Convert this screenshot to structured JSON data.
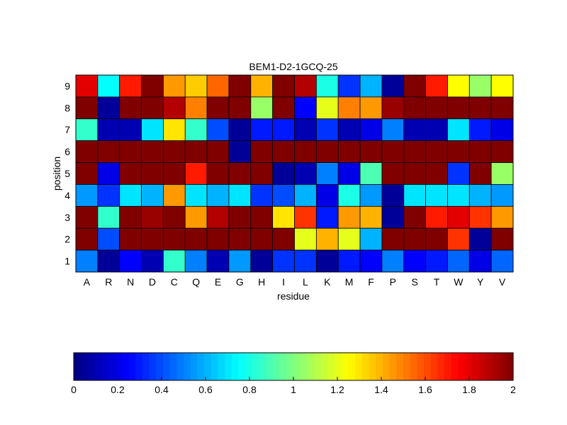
{
  "chart_data": {
    "type": "heatmap",
    "title": "BEM1-D2-1GCQ-25",
    "xlabel": "residue",
    "ylabel": "position",
    "x_categories": [
      "A",
      "R",
      "N",
      "D",
      "C",
      "Q",
      "E",
      "G",
      "H",
      "I",
      "L",
      "K",
      "M",
      "F",
      "P",
      "S",
      "T",
      "W",
      "Y",
      "V"
    ],
    "y_categories": [
      "1",
      "2",
      "3",
      "4",
      "5",
      "6",
      "7",
      "8",
      "9"
    ],
    "values_top_to_bottom_rows": [
      [
        1.8,
        0.75,
        1.7,
        2.0,
        1.45,
        1.35,
        1.55,
        2.0,
        1.4,
        2.0,
        1.9,
        0.8,
        0.35,
        0.6,
        0.05,
        2.0,
        1.7,
        1.25,
        1.05,
        1.25
      ],
      [
        2.0,
        0.05,
        2.0,
        2.0,
        1.9,
        1.5,
        2.0,
        2.0,
        1.05,
        2.0,
        0.25,
        1.2,
        1.5,
        1.45,
        1.95,
        2.0,
        2.0,
        2.0,
        2.0,
        2.0
      ],
      [
        0.85,
        0.1,
        0.1,
        0.7,
        1.3,
        0.85,
        0.4,
        0.05,
        0.3,
        0.3,
        0.1,
        0.35,
        0.1,
        0.2,
        0.5,
        0.1,
        0.1,
        0.7,
        0.3,
        0.2
      ],
      [
        2.0,
        2.0,
        2.0,
        2.0,
        2.0,
        2.0,
        2.0,
        0.05,
        2.0,
        2.0,
        2.0,
        2.0,
        2.0,
        2.0,
        2.0,
        2.0,
        2.0,
        2.0,
        2.0,
        2.0
      ],
      [
        2.0,
        0.2,
        2.0,
        2.0,
        2.0,
        1.7,
        2.0,
        2.0,
        2.0,
        0.05,
        0.1,
        0.5,
        0.2,
        0.9,
        2.0,
        2.0,
        2.0,
        0.35,
        2.0,
        1.05
      ],
      [
        0.55,
        0.35,
        0.7,
        0.6,
        1.45,
        0.7,
        0.6,
        0.7,
        0.35,
        0.4,
        0.6,
        0.2,
        0.8,
        0.55,
        0.05,
        0.7,
        0.7,
        0.7,
        0.6,
        0.55
      ],
      [
        2.0,
        0.85,
        2.0,
        1.95,
        2.0,
        1.45,
        1.9,
        2.0,
        2.0,
        1.3,
        1.65,
        0.3,
        1.45,
        1.4,
        0.05,
        2.0,
        1.7,
        1.8,
        1.65,
        1.45
      ],
      [
        2.0,
        0.4,
        2.0,
        2.0,
        2.0,
        2.0,
        2.0,
        2.0,
        2.0,
        2.0,
        1.2,
        1.4,
        1.2,
        0.6,
        2.0,
        2.0,
        2.0,
        1.65,
        0.05,
        2.0
      ],
      [
        0.5,
        0.05,
        0.25,
        0.1,
        0.85,
        0.5,
        0.1,
        0.55,
        0.05,
        0.35,
        0.35,
        0.05,
        0.3,
        0.25,
        0.5,
        0.25,
        0.3,
        0.45,
        0.2,
        0.45
      ]
    ],
    "clim": [
      0,
      2
    ],
    "colormap": "jet",
    "colorbar": {
      "orientation": "horizontal",
      "placement": "bottom",
      "ticks": [
        "0",
        "0.2",
        "0.4",
        "0.6",
        "0.8",
        "1",
        "1.2",
        "1.4",
        "1.6",
        "1.8",
        "2"
      ]
    },
    "grid": false
  }
}
